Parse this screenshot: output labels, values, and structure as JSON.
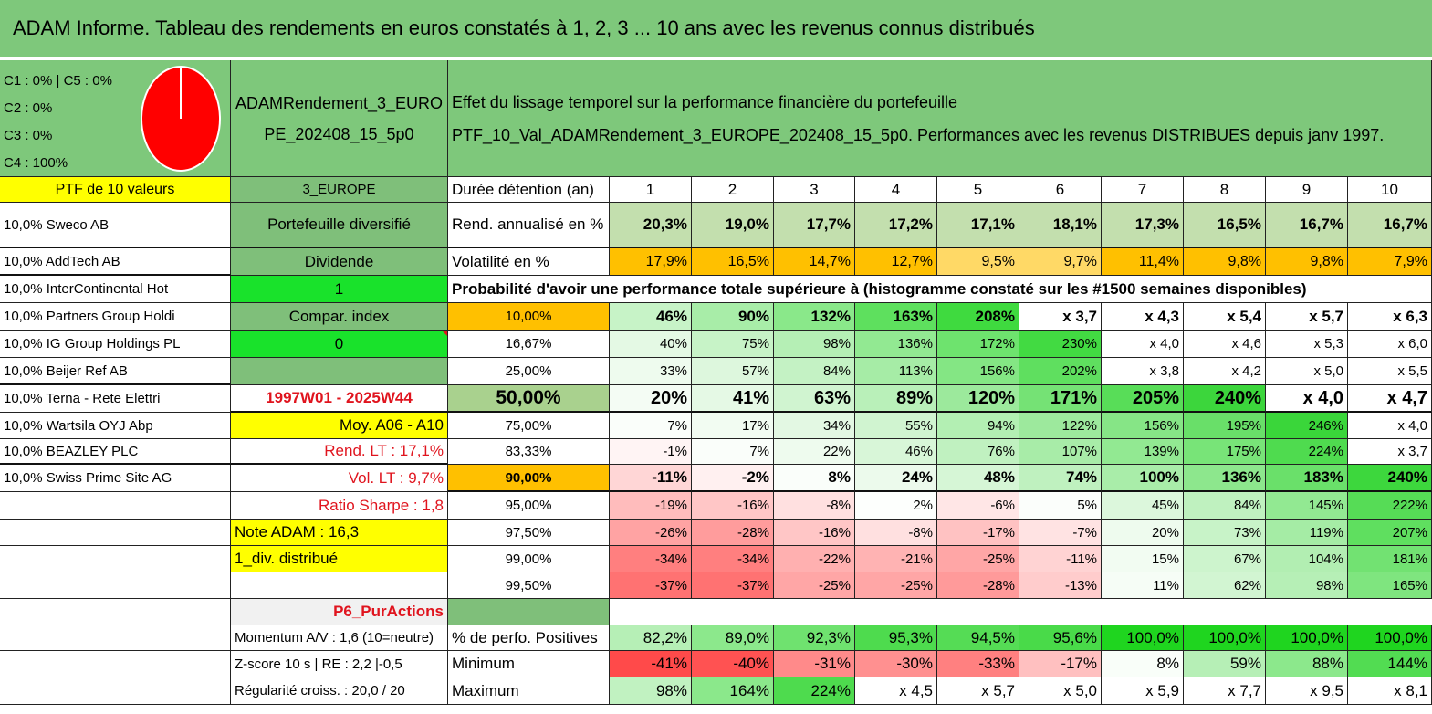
{
  "title": "ADAM Informe. Tableau des rendements en euros constatés à 1, 2, 3 ... 10 ans avec les revenus connus distribués",
  "pie": {
    "labels": [
      "C1 : 0% | C5 : 0%",
      "C2 : 0%",
      "C3 : 0%",
      "C4 : 100%"
    ],
    "slices": [
      {
        "name": "C4",
        "value": 100,
        "color": "#ff0000"
      }
    ]
  },
  "fund": {
    "name_line1": "ADAMRendement_3_EURO",
    "name_line2": "PE_202408_15_5p0",
    "zone": "3_EUROPE",
    "type": "Portefeuille diversifié",
    "div_label": "Dividende",
    "div_value": "1",
    "index_label": "Compar. index",
    "index_value": "0",
    "period": "1997W01 - 2025W44",
    "moy": "Moy. A06 - A10",
    "rend_lt": "Rend. LT : 17,1%",
    "vol_lt": "Vol. LT : 9,7%",
    "sharpe": "Ratio Sharpe : 1,8",
    "note": "Note ADAM : 16,3",
    "div_distrib": "1_div. distribué",
    "p6": "P6_PurActions",
    "momentum": "Momentum A/V : 1,6 (10=neutre)",
    "zscore": "Z-score 10 s | RE : 2,2 |-0,5",
    "regularite": "Régularité croiss. : 20,0 / 20"
  },
  "description": {
    "line1": "Effet du lissage temporel sur la performance financière du portefeuille",
    "line2": "PTF_10_Val_ADAMRendement_3_EUROPE_202408_15_5p0. Performances avec les revenus DISTRIBUES depuis janv 1997."
  },
  "portfolio": {
    "header": "PTF de 10 valeurs",
    "holdings": [
      "10,0% Sweco AB",
      "10,0% AddTech AB",
      "10,0% InterContinental Hot",
      "10,0% Partners Group Holdi",
      "10,0% IG Group Holdings PL",
      "10,0% Beijer Ref AB",
      "10,0% Terna - Rete Elettri",
      "10,0% Wartsila OYJ Abp",
      "10,0% BEAZLEY PLC",
      "10,0% Swiss Prime Site AG"
    ]
  },
  "table": {
    "duration_label": "Durée détention (an)",
    "years": [
      "1",
      "2",
      "3",
      "4",
      "5",
      "6",
      "7",
      "8",
      "9",
      "10"
    ],
    "rend_label": "Rend. annualisé en %",
    "rend": [
      "20,3%",
      "19,0%",
      "17,7%",
      "17,2%",
      "17,1%",
      "18,1%",
      "17,3%",
      "16,5%",
      "16,7%",
      "16,7%"
    ],
    "vol_label": "Volatilité en %",
    "vol": [
      "17,9%",
      "16,5%",
      "14,7%",
      "12,7%",
      "9,5%",
      "9,7%",
      "11,4%",
      "9,8%",
      "9,8%",
      "7,9%"
    ],
    "prob_title": "Probabilité d'avoir une performance totale supérieure à (histogramme constaté sur les #1500 semaines disponibles)",
    "quantiles": [
      {
        "q": "10,00%",
        "vals": [
          "46%",
          "90%",
          "132%",
          "163%",
          "208%",
          "x 3,7",
          "x 4,3",
          "x 5,4",
          "x 5,7",
          "x 6,3"
        ],
        "colors": [
          "#c7f3c7",
          "#a8eda8",
          "#8ae88a",
          "#5ee05e",
          "#3fda3f",
          "#ffffff",
          "#ffffff",
          "#ffffff",
          "#ffffff",
          "#ffffff"
        ]
      },
      {
        "q": "16,67%",
        "vals": [
          "40%",
          "75%",
          "98%",
          "136%",
          "172%",
          "230%",
          "x 4,0",
          "x 4,6",
          "x 5,3",
          "x 6,0"
        ],
        "colors": [
          "#e4f9e4",
          "#c7f3c7",
          "#b5efb5",
          "#92e992",
          "#6ee36e",
          "#42da42",
          "#ffffff",
          "#ffffff",
          "#ffffff",
          "#ffffff"
        ]
      },
      {
        "q": "25,00%",
        "vals": [
          "33%",
          "57%",
          "84%",
          "113%",
          "156%",
          "202%",
          "x 3,8",
          "x 4,2",
          "x 5,0",
          "x 5,5"
        ],
        "colors": [
          "#eefbee",
          "#ddf7dd",
          "#c4f2c4",
          "#a6eca6",
          "#84e684",
          "#5fdf5f",
          "#ffffff",
          "#ffffff",
          "#ffffff",
          "#ffffff"
        ]
      },
      {
        "q": "50,00%",
        "vals": [
          "20%",
          "41%",
          "63%",
          "89%",
          "120%",
          "171%",
          "205%",
          "240%",
          "x 4,0",
          "x 4,7"
        ],
        "colors": [
          "#f4fcf4",
          "#e5f9e5",
          "#d0f4d0",
          "#b9f0b9",
          "#9ce99c",
          "#75e275",
          "#58dd58",
          "#3cd63c",
          "#ffffff",
          "#ffffff"
        ]
      },
      {
        "q": "75,00%",
        "vals": [
          "7%",
          "17%",
          "34%",
          "55%",
          "94%",
          "122%",
          "156%",
          "195%",
          "246%",
          "x 4,0"
        ],
        "colors": [
          "#fafefa",
          "#f2fcf2",
          "#e3f8e3",
          "#d0f4d0",
          "#b3efb3",
          "#9de99d",
          "#86e586",
          "#69df69",
          "#3ad63a",
          "#ffffff"
        ]
      },
      {
        "q": "83,33%",
        "vals": [
          "-1%",
          "7%",
          "22%",
          "46%",
          "76%",
          "107%",
          "139%",
          "175%",
          "224%",
          "x 3,7"
        ],
        "colors": [
          "#fff4f4",
          "#fafefa",
          "#eefbee",
          "#d8f6d8",
          "#c0f1c0",
          "#a8eca8",
          "#92e992",
          "#78e478",
          "#4fdb4f",
          "#ffffff"
        ]
      },
      {
        "q": "90,00%",
        "vals": [
          "-11%",
          "-2%",
          "8%",
          "24%",
          "48%",
          "74%",
          "100%",
          "136%",
          "183%",
          "240%"
        ],
        "colors": [
          "#ffd6d6",
          "#fff0f0",
          "#fafefa",
          "#ecfaec",
          "#d6f6d6",
          "#bff1bf",
          "#a9eda9",
          "#8de78d",
          "#6ae06a",
          "#3dd73d"
        ]
      },
      {
        "q": "95,00%",
        "vals": [
          "-19%",
          "-16%",
          "-8%",
          "2%",
          "-6%",
          "5%",
          "45%",
          "84%",
          "145%",
          "222%"
        ],
        "colors": [
          "#ffbcbc",
          "#ffc6c6",
          "#ffe0e0",
          "#fdfffd",
          "#ffe6e6",
          "#fbfefb",
          "#dcf7dc",
          "#bff1bf",
          "#92e992",
          "#56dc56"
        ]
      },
      {
        "q": "97,50%",
        "vals": [
          "-26%",
          "-28%",
          "-16%",
          "-8%",
          "-17%",
          "-7%",
          "20%",
          "73%",
          "119%",
          "207%"
        ],
        "colors": [
          "#ffa3a3",
          "#ff9c9c",
          "#ffc6c6",
          "#ffe0e0",
          "#ffc2c2",
          "#ffe3e3",
          "#eefbee",
          "#c8f3c8",
          "#a5eca5",
          "#5fdf5f"
        ]
      },
      {
        "q": "99,00%",
        "vals": [
          "-34%",
          "-34%",
          "-22%",
          "-21%",
          "-25%",
          "-11%",
          "15%",
          "67%",
          "104%",
          "181%"
        ],
        "colors": [
          "#ff7f7f",
          "#ff7f7f",
          "#ffb0b0",
          "#ffb3b3",
          "#ffa6a6",
          "#ffd3d3",
          "#f2fcf2",
          "#cdf4cd",
          "#b2eeb2",
          "#72e272"
        ]
      },
      {
        "q": "99,50%",
        "vals": [
          "-37%",
          "-37%",
          "-25%",
          "-25%",
          "-28%",
          "-13%",
          "11%",
          "62%",
          "98%",
          "165%"
        ],
        "colors": [
          "#ff7272",
          "#ff7272",
          "#ffa6a6",
          "#ffa6a6",
          "#ff9a9a",
          "#ffcccc",
          "#f6fdf6",
          "#d2f5d2",
          "#b6efb6",
          "#7fe57f"
        ]
      }
    ],
    "pos_label": "% de perfo. Positives",
    "pos": [
      "82,2%",
      "89,0%",
      "92,3%",
      "95,3%",
      "94,5%",
      "95,6%",
      "100,0%",
      "100,0%",
      "100,0%",
      "100,0%"
    ],
    "pos_colors": [
      "#b6efb6",
      "#8ce88c",
      "#6fe26f",
      "#4edb4e",
      "#55dc55",
      "#49da49",
      "#1fd51f",
      "#1fd51f",
      "#1fd51f",
      "#1fd51f"
    ],
    "min_label": "Minimum",
    "min": [
      "-41%",
      "-40%",
      "-31%",
      "-30%",
      "-33%",
      "-17%",
      "8%",
      "59%",
      "88%",
      "144%"
    ],
    "min_colors": [
      "#ff4a4a",
      "#ff5252",
      "#ff8a8a",
      "#ff9090",
      "#ff8080",
      "#ffc0c0",
      "#f9fef9",
      "#b6efb6",
      "#8ce88c",
      "#52dc52"
    ],
    "max_label": "Maximum",
    "max": [
      "98%",
      "164%",
      "224%",
      "x 4,5",
      "x 5,7",
      "x 5,0",
      "x 5,9",
      "x 7,7",
      "x 9,5",
      "x 8,1"
    ],
    "max_colors": [
      "#c1f2c1",
      "#8be88b",
      "#4edb4e",
      "#ffffff",
      "#ffffff",
      "#ffffff",
      "#ffffff",
      "#ffffff",
      "#ffffff",
      "#ffffff"
    ]
  }
}
